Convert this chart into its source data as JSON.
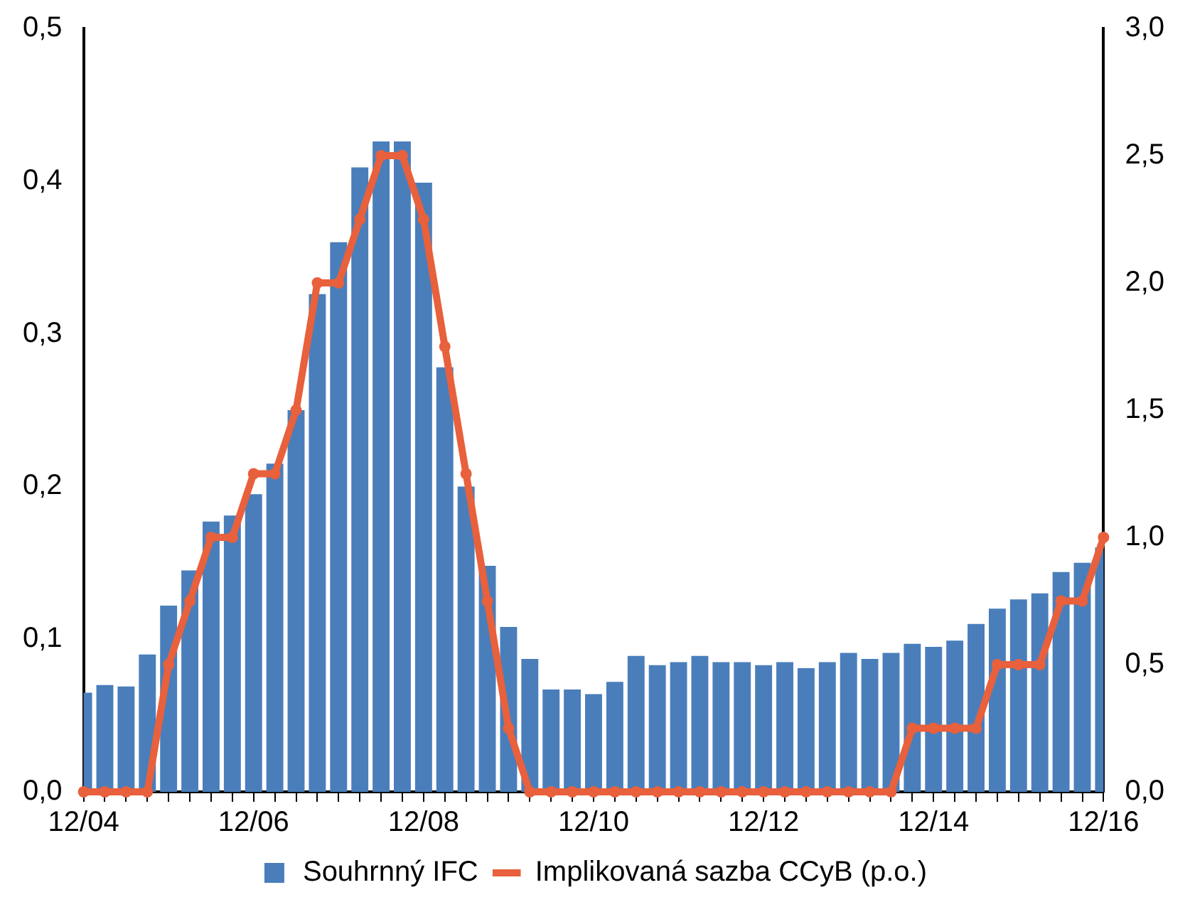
{
  "chart_data": {
    "type": "bar",
    "categories": [
      "12/04",
      null,
      null,
      null,
      null,
      null,
      null,
      null,
      "12/06",
      null,
      null,
      null,
      null,
      null,
      null,
      null,
      "12/08",
      null,
      null,
      null,
      null,
      null,
      null,
      null,
      "12/10",
      null,
      null,
      null,
      null,
      null,
      null,
      null,
      "12/12",
      null,
      null,
      null,
      null,
      null,
      null,
      null,
      "12/14",
      null,
      null,
      null,
      null,
      null,
      null,
      null,
      "12/16"
    ],
    "series": [
      {
        "name": "Souhrnný IFC",
        "color": "#4a7ebb",
        "values": [
          0.065,
          0.07,
          0.069,
          0.09,
          0.122,
          0.145,
          0.177,
          0.181,
          0.195,
          0.215,
          0.25,
          0.326,
          0.36,
          0.409,
          0.426,
          0.426,
          0.399,
          0.278,
          0.2,
          0.148,
          0.108,
          0.087,
          0.067,
          0.067,
          0.064,
          0.072,
          0.089,
          0.083,
          0.085,
          0.089,
          0.085,
          0.085,
          0.083,
          0.085,
          0.081,
          0.085,
          0.091,
          0.087,
          0.091,
          0.097,
          0.095,
          0.099,
          0.11,
          0.12,
          0.126,
          0.13,
          0.144,
          0.15,
          0.16
        ]
      },
      {
        "name": "Implikovaná sazba CCyB (p.o.)",
        "type": "line",
        "axis": "y2",
        "color": "#e8603c",
        "values": [
          0,
          0,
          0,
          0,
          0.5,
          0.75,
          1,
          1,
          1.25,
          1.25,
          1.5,
          2,
          2,
          2.25,
          2.5,
          2.5,
          2.25,
          1.75,
          1.25,
          0.75,
          0.25,
          0,
          0,
          0,
          0,
          0,
          0,
          0,
          0,
          0,
          0,
          0,
          0,
          0,
          0,
          0,
          0,
          0,
          0,
          0.25,
          0.25,
          0.25,
          0.25,
          0.5,
          0.5,
          0.5,
          0.75,
          0.75,
          1
        ]
      }
    ],
    "ylim": [
      0,
      0.5
    ],
    "yticks": [
      {
        "value": 0,
        "label": "0,0"
      },
      {
        "value": 0.1,
        "label": "0,1"
      },
      {
        "value": 0.2,
        "label": "0,2"
      },
      {
        "value": 0.3,
        "label": "0,3"
      },
      {
        "value": 0.4,
        "label": "0,4"
      },
      {
        "value": 0.5,
        "label": "0,5"
      }
    ],
    "y2lim": [
      0,
      3
    ],
    "y2ticks": [
      {
        "value": 0,
        "label": "0,0"
      },
      {
        "value": 0.5,
        "label": "0,5"
      },
      {
        "value": 1,
        "label": "1,0"
      },
      {
        "value": 1.5,
        "label": "1,5"
      },
      {
        "value": 2,
        "label": "2,0"
      },
      {
        "value": 2.5,
        "label": "2,5"
      },
      {
        "value": 3,
        "label": "3,0"
      }
    ],
    "grid": false,
    "legend": "bottom",
    "marker": "circle",
    "line_style": "solid"
  }
}
